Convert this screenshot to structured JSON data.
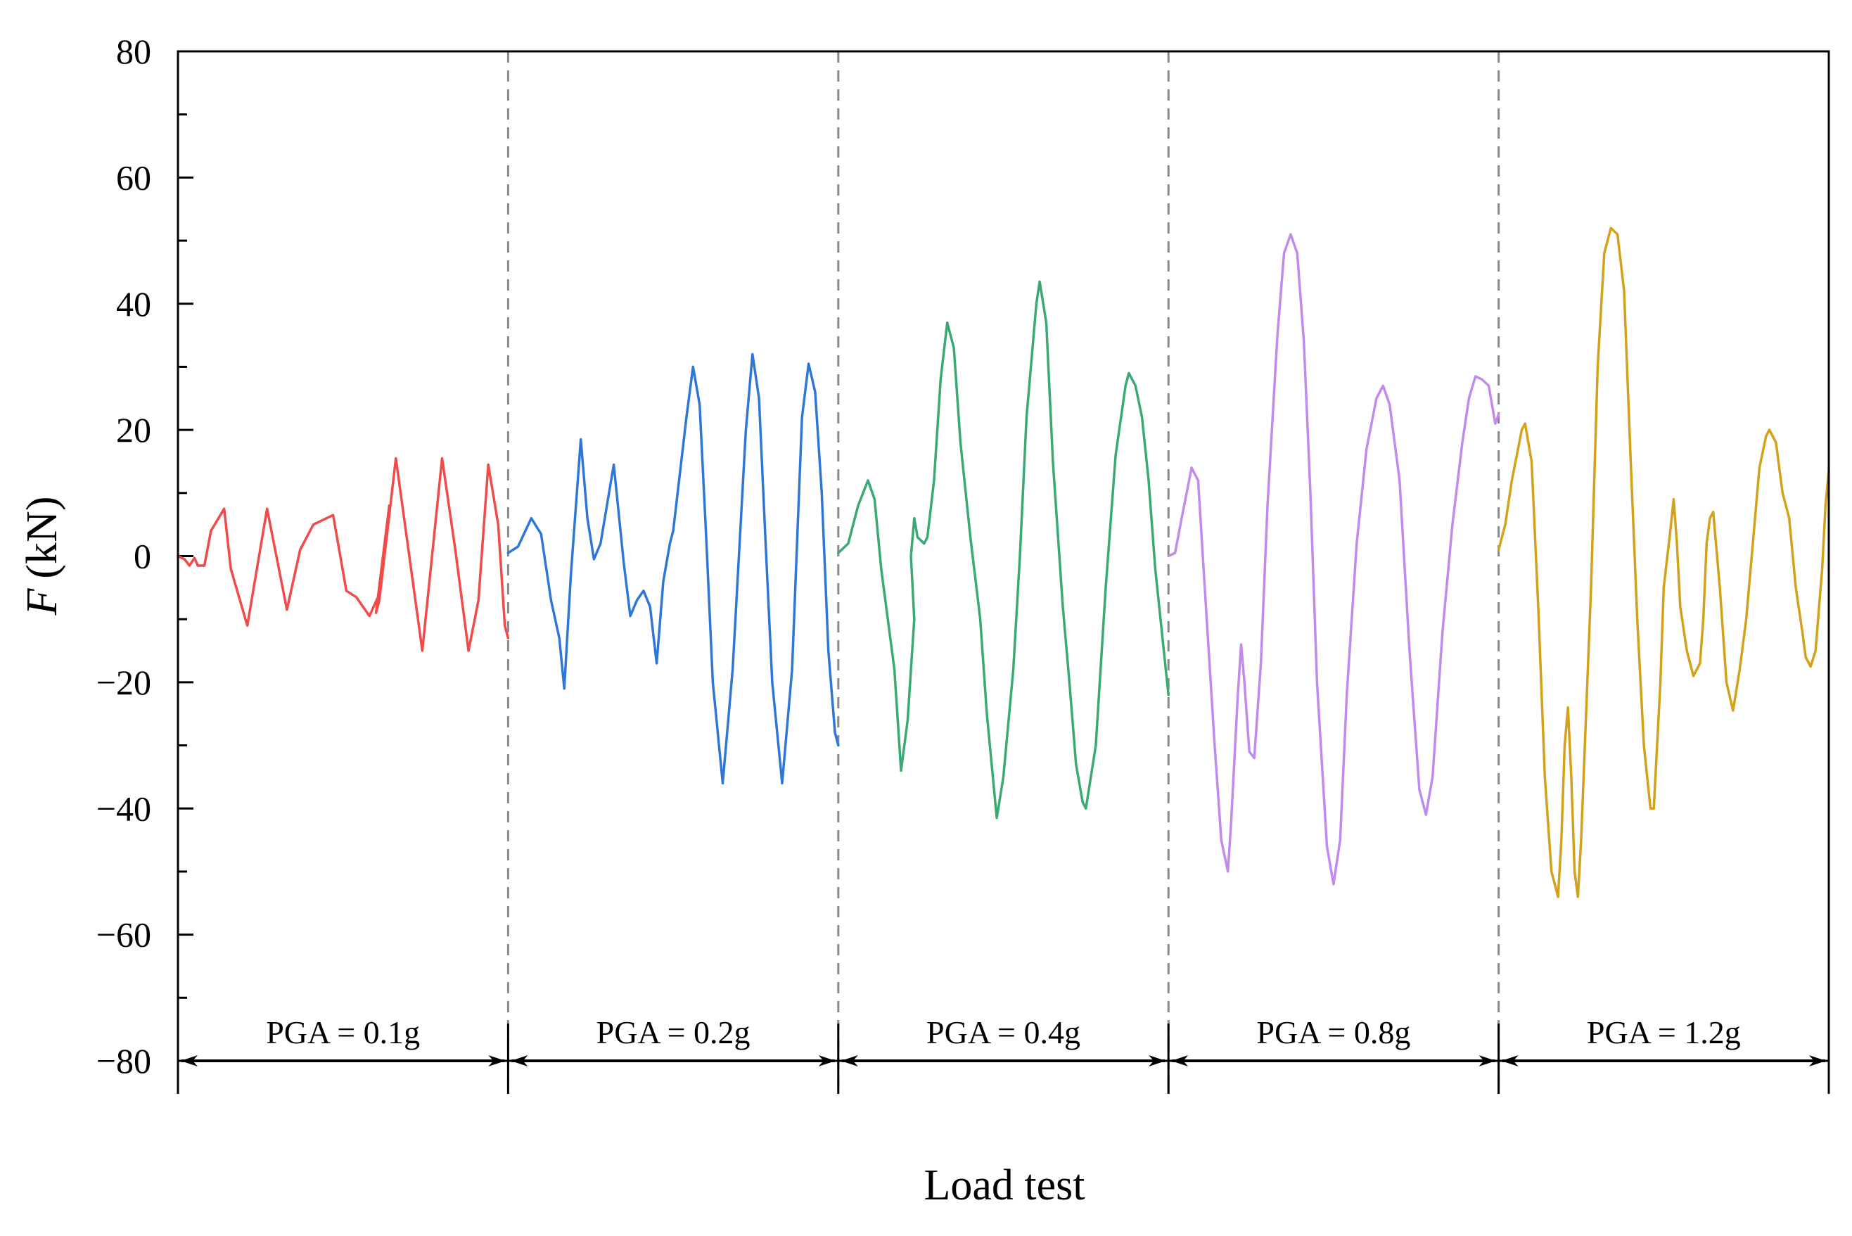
{
  "chart_data": {
    "type": "line",
    "title": "",
    "xlabel": "Load test",
    "ylabel": {
      "symbol": "F",
      "unit": "(kN)"
    },
    "ylim": [
      -80,
      80
    ],
    "yticks": [
      {
        "value": 80,
        "label": "80"
      },
      {
        "value": 60,
        "label": "60"
      },
      {
        "value": 40,
        "label": "40"
      },
      {
        "value": 20,
        "label": "20"
      },
      {
        "value": 0,
        "label": "0"
      },
      {
        "value": -20,
        "label": "−20"
      },
      {
        "value": -40,
        "label": "−40"
      },
      {
        "value": -60,
        "label": "−60"
      },
      {
        "value": -80,
        "label": "−80"
      }
    ],
    "x_unit": "segment fraction (0–1) within each load test",
    "grid": false,
    "series": [
      {
        "name": "PGA = 0.1g",
        "color": "#f04a4a",
        "points": [
          [
            0,
            0
          ],
          [
            0.02,
            -0.5
          ],
          [
            0.035,
            -1.5
          ],
          [
            0.05,
            -0.3
          ],
          [
            0.06,
            -1.5
          ],
          [
            0.08,
            -1.5
          ],
          [
            0.1,
            4
          ],
          [
            0.14,
            7.5
          ],
          [
            0.16,
            -2
          ],
          [
            0.21,
            -11
          ],
          [
            0.27,
            7.5
          ],
          [
            0.33,
            -8.5
          ],
          [
            0.37,
            1
          ],
          [
            0.41,
            5
          ],
          [
            0.45,
            6
          ],
          [
            0.47,
            6.5
          ],
          [
            0.51,
            -5.5
          ],
          [
            0.54,
            -6.5
          ],
          [
            0.58,
            -9.5
          ],
          [
            0.61,
            -6
          ],
          [
            0.64,
            8
          ],
          [
            0.6,
            -9
          ],
          [
            0.61,
            -7
          ],
          [
            0.66,
            15.5
          ],
          [
            0.74,
            -15
          ],
          [
            0.8,
            15.5
          ],
          [
            0.84,
            1
          ],
          [
            0.88,
            -15
          ],
          [
            0.91,
            -7
          ],
          [
            0.94,
            14.5
          ],
          [
            0.97,
            5
          ],
          [
            0.99,
            -11
          ],
          [
            1,
            -13
          ]
        ]
      },
      {
        "name": "PGA = 0.2g",
        "color": "#2f77d6",
        "points": [
          [
            0,
            0.5
          ],
          [
            0.03,
            1.5
          ],
          [
            0.07,
            6
          ],
          [
            0.1,
            3.5
          ],
          [
            0.13,
            -7
          ],
          [
            0.155,
            -13
          ],
          [
            0.17,
            -21
          ],
          [
            0.19,
            -3
          ],
          [
            0.22,
            18.5
          ],
          [
            0.24,
            6
          ],
          [
            0.26,
            -0.5
          ],
          [
            0.28,
            2
          ],
          [
            0.32,
            14.5
          ],
          [
            0.35,
            -1
          ],
          [
            0.37,
            -9.5
          ],
          [
            0.39,
            -7
          ],
          [
            0.41,
            -5.5
          ],
          [
            0.43,
            -8
          ],
          [
            0.45,
            -17
          ],
          [
            0.47,
            -4
          ],
          [
            0.49,
            2
          ],
          [
            0.5,
            4
          ],
          [
            0.54,
            22
          ],
          [
            0.56,
            30
          ],
          [
            0.58,
            24
          ],
          [
            0.6,
            3
          ],
          [
            0.62,
            -20
          ],
          [
            0.65,
            -36
          ],
          [
            0.68,
            -18
          ],
          [
            0.72,
            20
          ],
          [
            0.74,
            32
          ],
          [
            0.76,
            25
          ],
          [
            0.78,
            2
          ],
          [
            0.8,
            -20
          ],
          [
            0.83,
            -36
          ],
          [
            0.86,
            -18
          ],
          [
            0.89,
            22
          ],
          [
            0.91,
            30.5
          ],
          [
            0.93,
            26
          ],
          [
            0.95,
            10
          ],
          [
            0.97,
            -15
          ],
          [
            0.99,
            -28
          ],
          [
            1,
            -30
          ]
        ]
      },
      {
        "name": "PGA = 0.4g",
        "color": "#3aaa72",
        "points": [
          [
            0,
            0.5
          ],
          [
            0.03,
            2
          ],
          [
            0.06,
            8
          ],
          [
            0.09,
            12
          ],
          [
            0.11,
            9
          ],
          [
            0.13,
            -2
          ],
          [
            0.15,
            -10
          ],
          [
            0.17,
            -18
          ],
          [
            0.19,
            -34
          ],
          [
            0.21,
            -26
          ],
          [
            0.23,
            -10
          ],
          [
            0.22,
            0
          ],
          [
            0.23,
            6
          ],
          [
            0.24,
            3
          ],
          [
            0.26,
            2
          ],
          [
            0.27,
            3
          ],
          [
            0.29,
            12
          ],
          [
            0.31,
            28
          ],
          [
            0.33,
            37
          ],
          [
            0.35,
            33
          ],
          [
            0.37,
            18
          ],
          [
            0.4,
            3
          ],
          [
            0.43,
            -10
          ],
          [
            0.45,
            -25
          ],
          [
            0.47,
            -36
          ],
          [
            0.48,
            -41.5
          ],
          [
            0.5,
            -35
          ],
          [
            0.53,
            -18
          ],
          [
            0.55,
            0
          ],
          [
            0.57,
            22
          ],
          [
            0.6,
            40
          ],
          [
            0.61,
            43.5
          ],
          [
            0.63,
            37
          ],
          [
            0.65,
            15
          ],
          [
            0.68,
            -8
          ],
          [
            0.7,
            -20
          ],
          [
            0.72,
            -33
          ],
          [
            0.74,
            -39
          ],
          [
            0.75,
            -40
          ],
          [
            0.78,
            -30
          ],
          [
            0.81,
            -5
          ],
          [
            0.84,
            16
          ],
          [
            0.87,
            27
          ],
          [
            0.88,
            29
          ],
          [
            0.9,
            27
          ],
          [
            0.92,
            22
          ],
          [
            0.94,
            12
          ],
          [
            0.96,
            -2
          ],
          [
            0.98,
            -12
          ],
          [
            1,
            -22
          ]
        ]
      },
      {
        "name": "PGA = 0.8g",
        "color": "#c08bec",
        "points": [
          [
            0,
            0
          ],
          [
            0.02,
            0.5
          ],
          [
            0.04,
            6
          ],
          [
            0.07,
            14
          ],
          [
            0.09,
            12
          ],
          [
            0.11,
            -5
          ],
          [
            0.14,
            -30
          ],
          [
            0.16,
            -45
          ],
          [
            0.18,
            -50
          ],
          [
            0.19,
            -42
          ],
          [
            0.21,
            -22
          ],
          [
            0.22,
            -14
          ],
          [
            0.23,
            -20
          ],
          [
            0.245,
            -31
          ],
          [
            0.26,
            -32
          ],
          [
            0.28,
            -17
          ],
          [
            0.3,
            8
          ],
          [
            0.33,
            35
          ],
          [
            0.35,
            48
          ],
          [
            0.37,
            51
          ],
          [
            0.39,
            48
          ],
          [
            0.41,
            34
          ],
          [
            0.43,
            10
          ],
          [
            0.45,
            -20
          ],
          [
            0.48,
            -46
          ],
          [
            0.5,
            -52
          ],
          [
            0.52,
            -45
          ],
          [
            0.54,
            -22
          ],
          [
            0.57,
            2
          ],
          [
            0.6,
            17
          ],
          [
            0.63,
            25
          ],
          [
            0.65,
            27
          ],
          [
            0.67,
            24
          ],
          [
            0.7,
            12
          ],
          [
            0.73,
            -15
          ],
          [
            0.76,
            -37
          ],
          [
            0.78,
            -41
          ],
          [
            0.8,
            -35
          ],
          [
            0.83,
            -12
          ],
          [
            0.86,
            5
          ],
          [
            0.89,
            18
          ],
          [
            0.91,
            25
          ],
          [
            0.93,
            28.5
          ],
          [
            0.95,
            28
          ],
          [
            0.97,
            27
          ],
          [
            0.99,
            21
          ],
          [
            1,
            22.5
          ]
        ]
      },
      {
        "name": "PGA = 1.2g",
        "color": "#d4a11a",
        "points": [
          [
            0,
            1
          ],
          [
            0.02,
            5
          ],
          [
            0.04,
            12
          ],
          [
            0.07,
            20
          ],
          [
            0.08,
            21
          ],
          [
            0.1,
            15
          ],
          [
            0.12,
            -8
          ],
          [
            0.14,
            -35
          ],
          [
            0.16,
            -50
          ],
          [
            0.18,
            -54
          ],
          [
            0.19,
            -45
          ],
          [
            0.2,
            -30
          ],
          [
            0.21,
            -24
          ],
          [
            0.22,
            -35
          ],
          [
            0.23,
            -50
          ],
          [
            0.24,
            -54
          ],
          [
            0.25,
            -45
          ],
          [
            0.28,
            -5
          ],
          [
            0.3,
            30
          ],
          [
            0.32,
            48
          ],
          [
            0.34,
            52
          ],
          [
            0.36,
            51
          ],
          [
            0.38,
            42
          ],
          [
            0.4,
            15
          ],
          [
            0.42,
            -10
          ],
          [
            0.44,
            -30
          ],
          [
            0.46,
            -40
          ],
          [
            0.47,
            -40
          ],
          [
            0.49,
            -20
          ],
          [
            0.5,
            -5
          ],
          [
            0.52,
            4
          ],
          [
            0.53,
            9
          ],
          [
            0.54,
            2
          ],
          [
            0.55,
            -8
          ],
          [
            0.57,
            -15
          ],
          [
            0.59,
            -19
          ],
          [
            0.61,
            -17
          ],
          [
            0.62,
            -10
          ],
          [
            0.63,
            2
          ],
          [
            0.64,
            6
          ],
          [
            0.65,
            7
          ],
          [
            0.67,
            -5
          ],
          [
            0.69,
            -20
          ],
          [
            0.71,
            -24.5
          ],
          [
            0.73,
            -18
          ],
          [
            0.75,
            -10
          ],
          [
            0.77,
            2
          ],
          [
            0.79,
            14
          ],
          [
            0.81,
            19
          ],
          [
            0.82,
            20
          ],
          [
            0.84,
            18
          ],
          [
            0.86,
            10
          ],
          [
            0.88,
            6
          ],
          [
            0.9,
            -5
          ],
          [
            0.92,
            -12
          ],
          [
            0.93,
            -16
          ],
          [
            0.945,
            -17.5
          ],
          [
            0.96,
            -15
          ],
          [
            0.98,
            -2
          ],
          [
            0.99,
            8
          ],
          [
            1,
            13.5
          ]
        ]
      }
    ],
    "segments": [
      {
        "label": "PGA = 0.1g"
      },
      {
        "label": "PGA = 0.2g"
      },
      {
        "label": "PGA = 0.4g"
      },
      {
        "label": "PGA = 0.8g"
      },
      {
        "label": "PGA = 1.2g"
      }
    ]
  }
}
